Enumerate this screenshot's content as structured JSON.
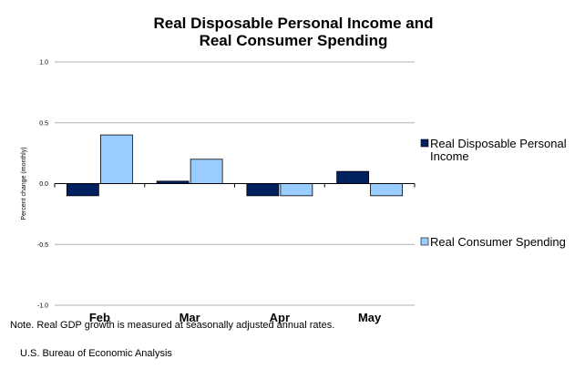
{
  "chart_data": {
    "type": "bar",
    "title_lines": [
      "Real Disposable Personal Income and",
      "Real Consumer Spending"
    ],
    "ylabel": "Percent change (monthly)",
    "categories": [
      "Feb",
      "Mar",
      "Apr",
      "May"
    ],
    "ylim": [
      -1.0,
      1.0
    ],
    "yticks": [
      "1.0",
      "0.5",
      "0.0",
      "-0.5",
      "-1.0"
    ],
    "ytick_values": [
      1.0,
      0.5,
      0.0,
      -0.5,
      -1.0
    ],
    "grid": true,
    "legend_position": "right",
    "series": [
      {
        "name_lines": [
          "Real Disposable Personal",
          "Income"
        ],
        "color": "#002060",
        "values": [
          -0.1,
          0.02,
          -0.1,
          0.1
        ]
      },
      {
        "name_lines": [
          "Real Consumer Spending"
        ],
        "color": "#99ccff",
        "values": [
          0.4,
          0.2,
          -0.1,
          -0.1
        ]
      }
    ]
  },
  "footer": {
    "note": "Note.  Real GDP growth is measured at seasonally adjusted annual rates.",
    "source": "U.S. Bureau of Economic Analysis"
  }
}
